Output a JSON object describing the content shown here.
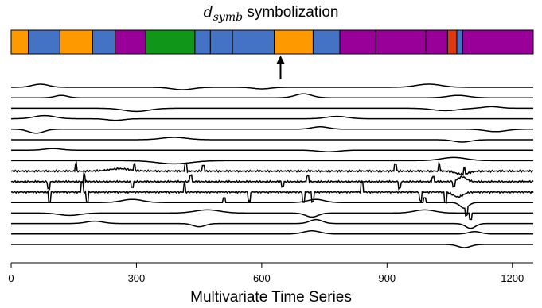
{
  "chart_data": {
    "type": "line",
    "title": {
      "symbol": "d",
      "subscript": "symb",
      "text": "symbolization"
    },
    "xlabel": "Multivariate Time Series",
    "xlim": [
      0,
      1250
    ],
    "xticks": [
      0,
      300,
      600,
      900,
      1200
    ],
    "colors": {
      "orange": "#ff9900",
      "blue": "#4472c4",
      "purple": "#990099",
      "green": "#109618",
      "red": "#dc3912"
    },
    "segments": [
      {
        "start": 0,
        "end": 41,
        "color": "orange"
      },
      {
        "start": 41,
        "end": 117,
        "color": "blue"
      },
      {
        "start": 117,
        "end": 195,
        "color": "orange"
      },
      {
        "start": 195,
        "end": 249,
        "color": "blue"
      },
      {
        "start": 249,
        "end": 322,
        "color": "purple"
      },
      {
        "start": 322,
        "end": 440,
        "color": "green"
      },
      {
        "start": 440,
        "end": 477,
        "color": "blue"
      },
      {
        "start": 477,
        "end": 530,
        "color": "blue"
      },
      {
        "start": 530,
        "end": 630,
        "color": "blue"
      },
      {
        "start": 630,
        "end": 723,
        "color": "orange"
      },
      {
        "start": 723,
        "end": 787,
        "color": "blue"
      },
      {
        "start": 787,
        "end": 873,
        "color": "purple"
      },
      {
        "start": 873,
        "end": 993,
        "color": "purple"
      },
      {
        "start": 993,
        "end": 1045,
        "color": "purple"
      },
      {
        "start": 1045,
        "end": 1067,
        "color": "red"
      },
      {
        "start": 1067,
        "end": 1081,
        "color": "blue"
      },
      {
        "start": 1081,
        "end": 1250,
        "color": "purple"
      }
    ],
    "arrow_at": 645,
    "series": [
      {
        "bumps": [
          [
            70,
            -4,
            20
          ],
          [
            410,
            3,
            25
          ],
          [
            600,
            2,
            20
          ],
          [
            1000,
            -4,
            30
          ]
        ],
        "spikes": []
      },
      {
        "bumps": [
          [
            120,
            -3,
            15
          ],
          [
            700,
            -5,
            20
          ],
          [
            1070,
            -3,
            25
          ]
        ],
        "spikes": []
      },
      {
        "bumps": [
          [
            300,
            4,
            30
          ],
          [
            1040,
            3,
            30
          ],
          [
            1150,
            -2,
            20
          ]
        ],
        "spikes": []
      },
      {
        "bumps": [
          [
            80,
            -4,
            25
          ],
          [
            250,
            2,
            20
          ],
          [
            780,
            -3,
            25
          ]
        ],
        "spikes": []
      },
      {
        "bumps": [
          [
            60,
            5,
            18
          ],
          [
            740,
            -3,
            20
          ],
          [
            1160,
            3,
            25
          ]
        ],
        "spikes": []
      },
      {
        "bumps": [
          [
            390,
            -3,
            30
          ],
          [
            1080,
            3,
            20
          ]
        ],
        "spikes": []
      },
      {
        "bumps": [
          [
            100,
            -2,
            20
          ],
          [
            760,
            2,
            25
          ]
        ],
        "spikes": []
      },
      {
        "bumps": [
          [
            390,
            4,
            40
          ],
          [
            1060,
            -4,
            30
          ]
        ],
        "spikes": []
      },
      {
        "bumps": [
          [
            260,
            -3,
            25
          ],
          [
            1080,
            4,
            15
          ]
        ],
        "spikes": [
          [
            155,
            -10
          ],
          [
            295,
            -8
          ],
          [
            418,
            -9
          ],
          [
            460,
            -7
          ],
          [
            920,
            -9
          ],
          [
            1025,
            -10
          ],
          [
            1085,
            -8
          ]
        ]
      },
      {
        "bumps": [
          [
            1080,
            -6,
            10
          ]
        ],
        "spikes": [
          [
            90,
            9
          ],
          [
            175,
            -10
          ],
          [
            290,
            7
          ],
          [
            430,
            -8
          ],
          [
            650,
            6
          ],
          [
            710,
            -7
          ],
          [
            930,
            8
          ],
          [
            1010,
            -6
          ],
          [
            1060,
            7
          ]
        ]
      },
      {
        "bumps": [
          [
            1070,
            6,
            12
          ]
        ],
        "spikes": [
          [
            92,
            12
          ],
          [
            170,
            -12
          ],
          [
            182,
            12
          ],
          [
            415,
            -11
          ],
          [
            570,
            12
          ],
          [
            700,
            13
          ],
          [
            722,
            12
          ],
          [
            840,
            -12
          ],
          [
            980,
            11
          ],
          [
            1040,
            13
          ]
        ]
      },
      {
        "bumps": [
          [
            290,
            -4,
            25
          ],
          [
            730,
            -4,
            20
          ],
          [
            1085,
            7,
            10
          ]
        ],
        "spikes": [
          [
            1090,
            10
          ],
          [
            510,
            -6
          ],
          [
            990,
            -6
          ]
        ]
      },
      {
        "bumps": [
          [
            140,
            3,
            25
          ],
          [
            470,
            -4,
            30
          ],
          [
            720,
            5,
            15
          ],
          [
            990,
            -4,
            25
          ]
        ],
        "spikes": [
          [
            1100,
            8
          ]
        ]
      },
      {
        "bumps": [
          [
            200,
            -3,
            20
          ],
          [
            450,
            4,
            15
          ],
          [
            730,
            -5,
            15
          ],
          [
            1100,
            6,
            12
          ]
        ],
        "spikes": []
      },
      {
        "bumps": [
          [
            720,
            -4,
            20
          ],
          [
            1110,
            -3,
            15
          ]
        ],
        "spikes": []
      },
      {
        "bumps": [
          [
            1085,
            4,
            15
          ]
        ],
        "spikes": []
      }
    ]
  }
}
